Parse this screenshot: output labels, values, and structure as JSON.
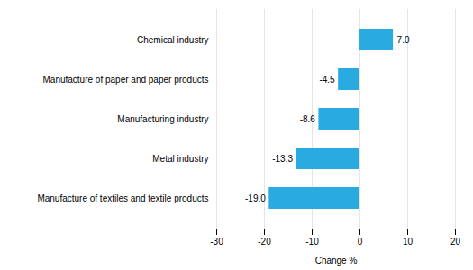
{
  "chart_data": {
    "type": "bar",
    "orientation": "horizontal",
    "categories": [
      "Manufacture of textiles and textile products",
      "Metal industry",
      "Manufacturing industry",
      "Manufacture of paper and paper products",
      "Chemical industry"
    ],
    "values": [
      -19.0,
      -13.3,
      -8.6,
      -4.5,
      7.0
    ],
    "value_labels": [
      "-19.0",
      "-13.3",
      "-8.6",
      "-4.5",
      "7.0"
    ],
    "data_labels": true,
    "color": "#29ABE2",
    "xlabel": "Change %",
    "xlim": [
      -30,
      20
    ],
    "xticks": [
      -30,
      -20,
      -10,
      0,
      10,
      20
    ],
    "grid": true
  }
}
